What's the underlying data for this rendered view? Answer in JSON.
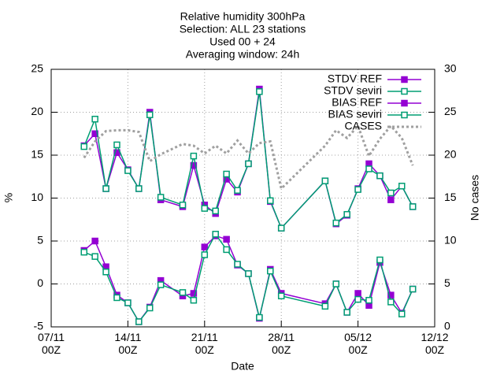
{
  "chart_data": {
    "type": "line",
    "title": [
      "Relative humidity 300hPa",
      "Selection: ALL     23 stations",
      "Used 00 + 24",
      "Averaging window: 24h"
    ],
    "x_label": "Date",
    "y_label": "%",
    "y2_label": "No cases",
    "x": [
      3,
      4,
      5,
      6,
      7,
      8,
      9,
      10,
      12,
      13,
      14,
      15,
      16,
      17,
      18,
      19,
      20,
      21,
      25,
      26,
      27,
      28,
      29,
      30,
      31,
      32,
      33
    ],
    "xlim": [
      0,
      35
    ],
    "xticks": [
      {
        "value": 0,
        "label": "07/11 00Z"
      },
      {
        "value": 7,
        "label": "14/11 00Z"
      },
      {
        "value": 14,
        "label": "21/11 00Z"
      },
      {
        "value": 21,
        "label": "28/11 00Z"
      },
      {
        "value": 28,
        "label": "05/12 00Z"
      },
      {
        "value": 35,
        "label": "12/12 00Z"
      }
    ],
    "ylim": [
      -5,
      25
    ],
    "yticks": [
      -5,
      0,
      5,
      10,
      15,
      20,
      25
    ],
    "y2lim": [
      0,
      30
    ],
    "y2ticks": [
      0,
      5,
      10,
      15,
      20,
      25,
      30
    ],
    "grid": true,
    "series": [
      {
        "name": "STDV REF",
        "color": "#9400d3",
        "values": [
          16.1,
          17.5,
          11.1,
          15.3,
          13.3,
          11.1,
          20,
          9.8,
          9.0,
          13.8,
          9.2,
          8.2,
          12.2,
          10.7,
          14,
          22.7,
          9.6,
          6.5,
          12,
          7.0,
          8.0,
          11.1,
          14,
          12.6,
          9.8,
          11.4,
          9.0
        ]
      },
      {
        "name": "STDV seviri",
        "color": "#009e73",
        "values": [
          16.0,
          19.2,
          11.1,
          16.2,
          13.2,
          11.1,
          19.7,
          10.1,
          9.2,
          14.9,
          8.8,
          8.5,
          12.8,
          10.9,
          14,
          22.4,
          9.7,
          6.5,
          12,
          7.1,
          8.1,
          11.0,
          13.4,
          12.6,
          10.6,
          11.4,
          9.0
        ]
      },
      {
        "name": "BIAS REF",
        "color": "#9400d3",
        "values": [
          3.9,
          5.0,
          2.0,
          -1.3,
          -2.2,
          -4.4,
          -2.7,
          0.4,
          -1.4,
          -1.1,
          4.3,
          5.6,
          5.2,
          2.2,
          1.2,
          -4.0,
          1.7,
          -1.1,
          -2.3,
          0,
          -3.3,
          -1.1,
          -2.5,
          2.5,
          -1.3,
          -3.4,
          -0.6
        ]
      },
      {
        "name": "BIAS seviri",
        "color": "#009e73",
        "values": [
          3.7,
          3.2,
          1.4,
          -1.6,
          -2.2,
          -4.4,
          -2.8,
          -0.1,
          -1.0,
          -1.9,
          3.4,
          5.8,
          4.0,
          2.3,
          1.2,
          -3.9,
          1.5,
          -1.4,
          -2.6,
          0.0,
          -3.3,
          -1.8,
          -1.9,
          2.8,
          -2.1,
          -3.5,
          -0.6
        ]
      },
      {
        "name": "CASES",
        "color": "#a0a0a0",
        "axis": "y2",
        "line_style": "dotted",
        "values": [
          19.7,
          21.6,
          22.8,
          22.9,
          22.9,
          22.7,
          19.3,
          20.1,
          21.3,
          21.1,
          20.2,
          21.1,
          20.2,
          21.7,
          20.2,
          21.4,
          21.6,
          16.1,
          21.1,
          22.9,
          22,
          23.4,
          19.9,
          21.9,
          23.4,
          22,
          18.8
        ]
      }
    ]
  }
}
